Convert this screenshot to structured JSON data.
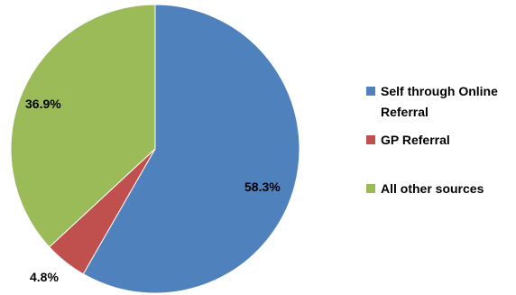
{
  "chart_data": {
    "type": "pie",
    "slices": [
      {
        "label": "Self through Online Referral",
        "value": 58.3,
        "value_label": "58.3%",
        "color": "#4f81bd"
      },
      {
        "label": "GP Referral",
        "value": 4.8,
        "value_label": "4.8%",
        "color": "#c0504d"
      },
      {
        "label": "All other sources",
        "value": 36.9,
        "value_label": "36.9%",
        "color": "#9bbb59"
      }
    ],
    "legend": {
      "placement": "right",
      "entries": [
        {
          "line1": "Self through Online",
          "line2": "Referral"
        },
        {
          "line1": "GP Referral",
          "line2": ""
        },
        {
          "line1": "All other sources",
          "line2": ""
        }
      ]
    }
  }
}
